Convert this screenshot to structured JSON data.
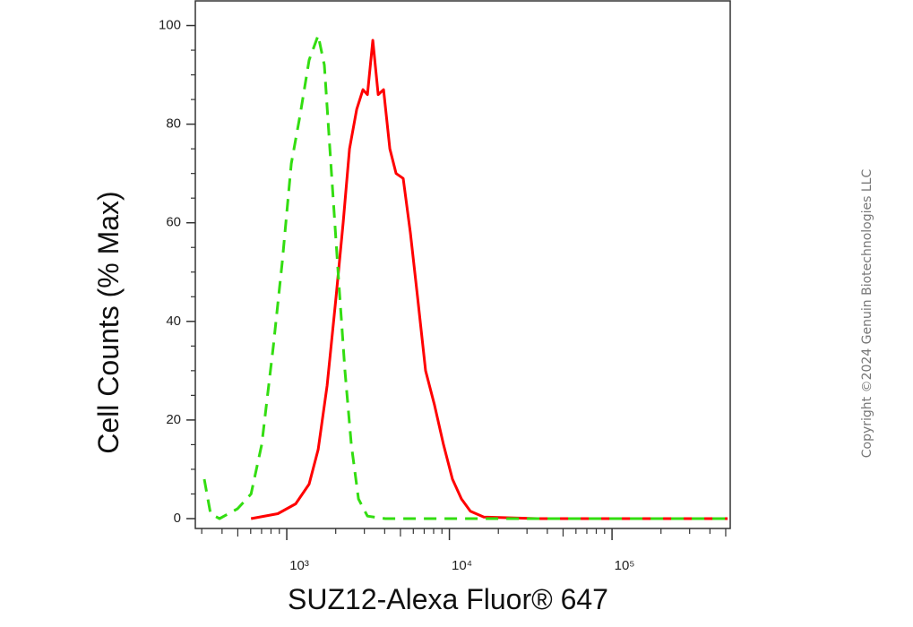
{
  "chart_data": {
    "type": "line",
    "xlabel": "SUZ12-Alexa Fluor® 647",
    "ylabel": "Cell Counts (% Max)",
    "annotation": "Copyright ©2024 Genuin Biotechnologies LLC",
    "xscale": "log",
    "xlim": [
      274,
      533000
    ],
    "ylim": [
      -2,
      105
    ],
    "xticks": [
      {
        "value": 1000,
        "label": "10³"
      },
      {
        "value": 10000,
        "label": "10⁴"
      },
      {
        "value": 100000,
        "label": "10⁵"
      }
    ],
    "yticks": [
      0,
      20,
      40,
      60,
      80,
      100
    ],
    "series": [
      {
        "color": "#ff0000",
        "dash": "solid",
        "x": [
          603,
          881,
          1135,
          1373,
          1560,
          1770,
          2010,
          2223,
          2430,
          2691,
          2940,
          3133,
          3380,
          3649,
          3937,
          4303,
          4700,
          5200,
          5757,
          6370,
          7140,
          8107,
          9200,
          10450,
          11860,
          13460,
          16290,
          34900,
          124000,
          514000
        ],
        "values": [
          0,
          1,
          3,
          7,
          14,
          27,
          45,
          60,
          75,
          83,
          87,
          86,
          97,
          86,
          87,
          75,
          70,
          69,
          58,
          45,
          30,
          23,
          15,
          8,
          4,
          1.5,
          0.3,
          0,
          0,
          0
        ]
      },
      {
        "color": "#33dd11",
        "dash": "dashed",
        "x": [
          311,
          340,
          386,
          498,
          603,
          701,
          827,
          938,
          1066,
          1210,
          1373,
          1560,
          1703,
          1884,
          2088,
          2280,
          2494,
          2760,
          3133,
          4036,
          9820,
          514000
        ],
        "values": [
          8,
          1,
          0,
          2,
          5,
          15,
          35,
          52,
          72,
          82,
          93,
          98,
          92,
          70,
          48,
          30,
          15,
          4,
          0.5,
          0,
          0,
          0
        ]
      }
    ]
  }
}
